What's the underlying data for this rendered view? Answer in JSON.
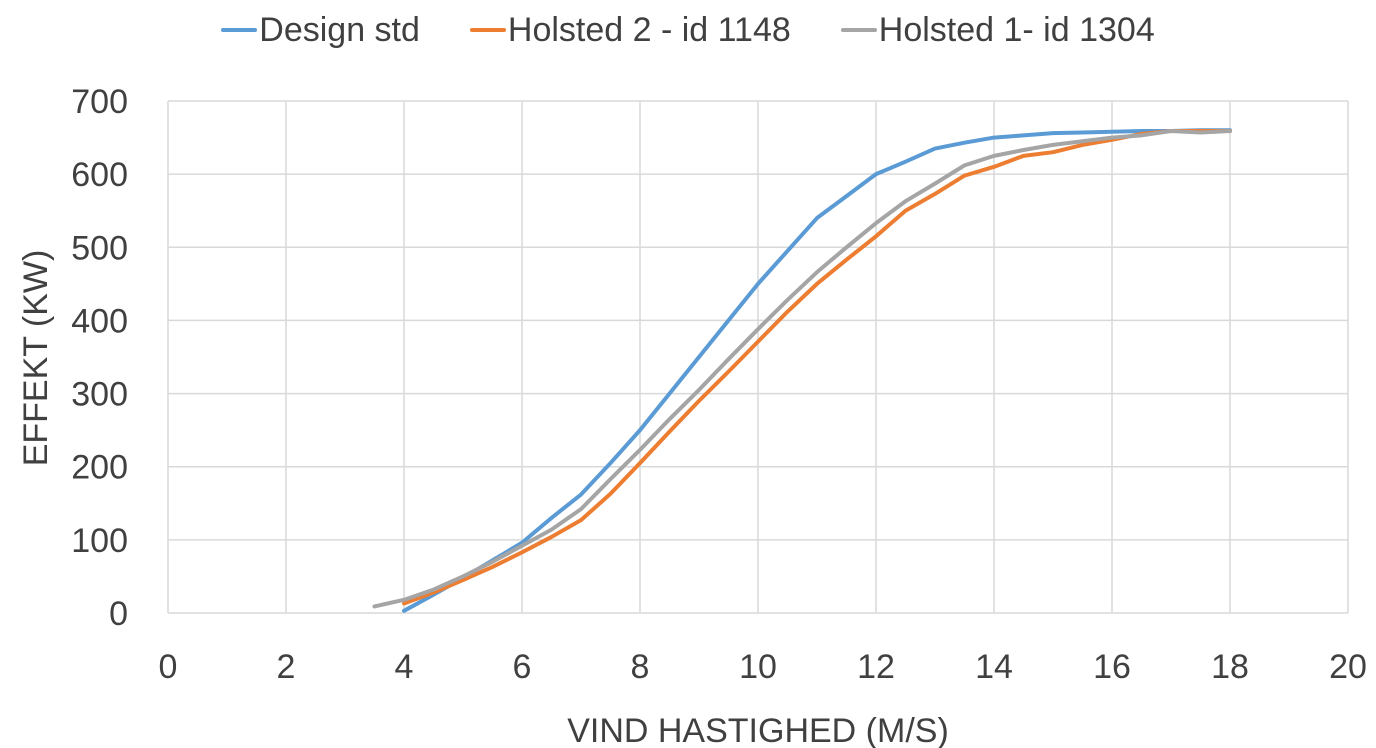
{
  "chart_data": {
    "type": "line",
    "xlabel": "VIND HASTIGHED (M/S)",
    "ylabel": "EFFEKT (KW)",
    "xlim": [
      0,
      20
    ],
    "ylim": [
      0,
      700
    ],
    "x_ticks": [
      0,
      2,
      4,
      6,
      8,
      10,
      12,
      14,
      16,
      18,
      20
    ],
    "y_ticks": [
      0,
      100,
      200,
      300,
      400,
      500,
      600,
      700
    ],
    "grid": true,
    "legend_position": "top",
    "series": [
      {
        "name": "Design std",
        "color": "#5b9bd5",
        "x": [
          4,
          4.5,
          5,
          5.5,
          6,
          6.5,
          7,
          7.5,
          8,
          8.5,
          9,
          9.5,
          10,
          10.5,
          11,
          11.5,
          12,
          12.5,
          13,
          13.5,
          14,
          14.5,
          15,
          15.5,
          16,
          16.5,
          17,
          17.5,
          18
        ],
        "y": [
          3,
          25,
          48,
          72,
          96,
          130,
          162,
          205,
          250,
          300,
          350,
          400,
          450,
          495,
          540,
          570,
          600,
          617,
          635,
          643,
          650,
          653,
          656,
          657,
          658,
          659,
          659,
          660,
          660
        ]
      },
      {
        "name": "Holsted 2 - id 1148",
        "color": "#ed7d31",
        "x": [
          4,
          4.5,
          5,
          5.5,
          6,
          6.5,
          7,
          7.5,
          8,
          8.5,
          9,
          9.5,
          10,
          10.5,
          11,
          11.5,
          12,
          12.5,
          13,
          13.5,
          14,
          14.5,
          15,
          15.5,
          16,
          16.5,
          17,
          17.5,
          18
        ],
        "y": [
          13,
          28,
          45,
          63,
          83,
          104,
          127,
          163,
          205,
          248,
          290,
          330,
          371,
          412,
          450,
          483,
          515,
          550,
          573,
          598,
          610,
          625,
          630,
          640,
          647,
          655,
          659,
          659,
          659
        ]
      },
      {
        "name": "Holsted 1- id 1304",
        "color": "#a5a5a5",
        "x": [
          3.5,
          4,
          4.5,
          5,
          5.5,
          6,
          6.5,
          7,
          7.5,
          8,
          8.5,
          9,
          9.5,
          10,
          10.5,
          11,
          11.5,
          12,
          12.5,
          13,
          13.5,
          14,
          14.5,
          15,
          15.5,
          16,
          16.5,
          17,
          17.5,
          18
        ],
        "y": [
          9,
          18,
          32,
          50,
          70,
          92,
          114,
          142,
          183,
          223,
          265,
          305,
          347,
          388,
          428,
          466,
          500,
          533,
          563,
          587,
          612,
          625,
          633,
          640,
          645,
          650,
          653,
          659,
          657,
          659
        ]
      }
    ]
  }
}
